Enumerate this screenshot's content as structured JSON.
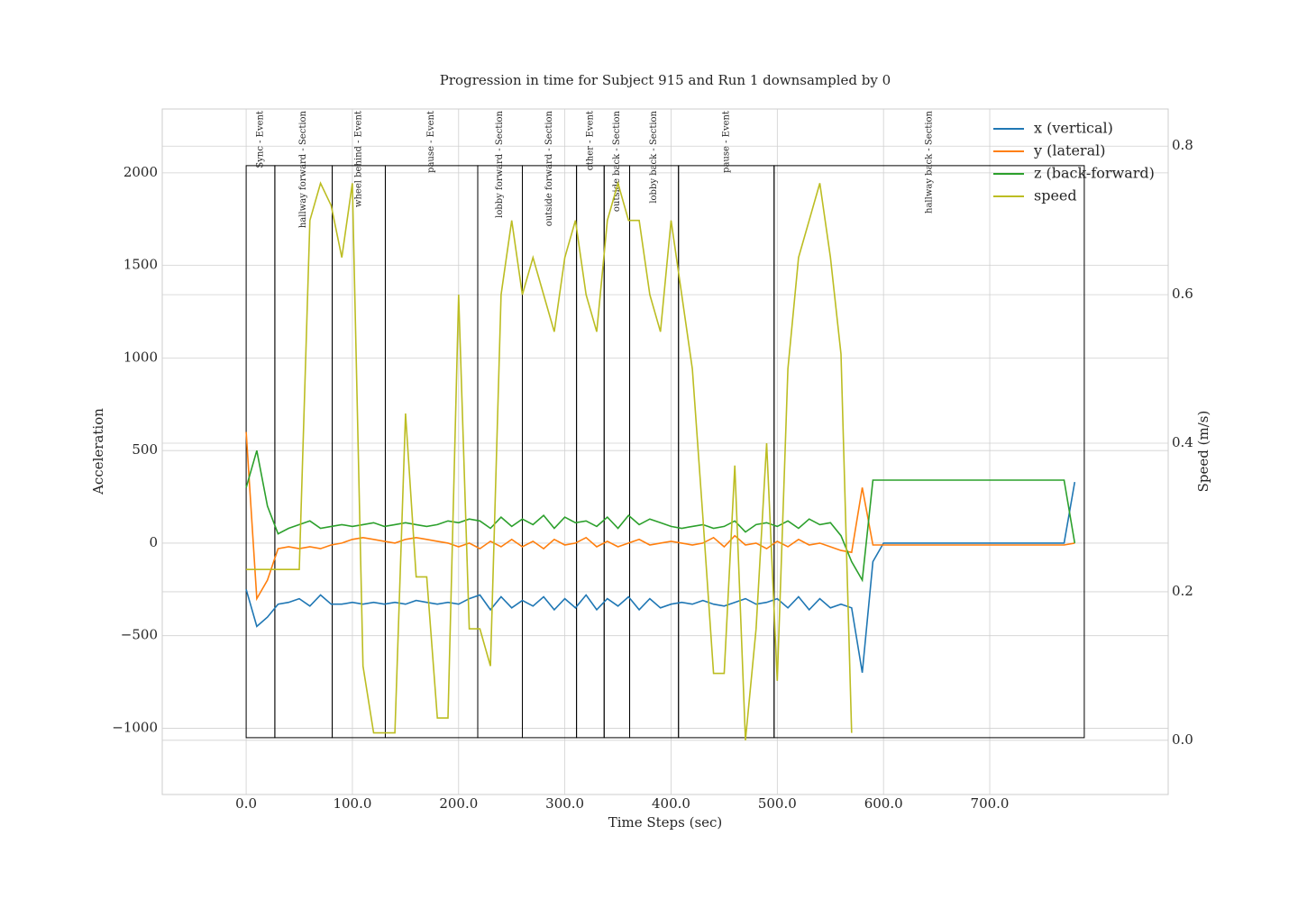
{
  "chart_data": {
    "type": "line",
    "title": "Progression in time for Subject 915 and Run 1 downsampled by 0",
    "x_label": "Time Steps (sec)",
    "y_label": "Acceleration",
    "y2_label": "Speed (m/s)",
    "xlim": [
      -79,
      868
    ],
    "ylim": [
      -1358,
      2345
    ],
    "y2lim": [
      -0.073,
      0.85
    ],
    "xticks": [
      {
        "value": 0,
        "label": "0.0"
      },
      {
        "value": 100,
        "label": "100.0"
      },
      {
        "value": 200,
        "label": "200.0"
      },
      {
        "value": 300,
        "label": "300.0"
      },
      {
        "value": 400,
        "label": "400.0"
      },
      {
        "value": 500,
        "label": "500.0"
      },
      {
        "value": 600,
        "label": "600.0"
      },
      {
        "value": 700,
        "label": "700.0"
      }
    ],
    "yticks": [
      {
        "value": -1000,
        "label": "−1000"
      },
      {
        "value": -500,
        "label": "−500"
      },
      0,
      500,
      1000,
      1500,
      2000
    ],
    "y2ticks": [
      {
        "value": 0,
        "label": "0.0"
      },
      0.2,
      0.4,
      0.6,
      0.8
    ],
    "grid": true,
    "legend": "upper right",
    "segment_range": [
      -1051,
      2039
    ],
    "segments": [
      {
        "label": "Sync - Event",
        "start": 0,
        "end": 27
      },
      {
        "label": "hallway forward - Section",
        "start": 27,
        "end": 81
      },
      {
        "label": "wheel behind - Event",
        "start": 81,
        "end": 131
      },
      {
        "label": "pause - Event",
        "start": 131,
        "end": 218
      },
      {
        "label": "lobby forward - Section",
        "start": 218,
        "end": 260
      },
      {
        "label": "outside forward - Section",
        "start": 260,
        "end": 311
      },
      {
        "label": "other - Event",
        "start": 311,
        "end": 337
      },
      {
        "label": "outside back - Section",
        "start": 337,
        "end": 361
      },
      {
        "label": "lobby back - Section",
        "start": 361,
        "end": 407
      },
      {
        "label": "pause - Event",
        "start": 407,
        "end": 497
      },
      {
        "label": "hallway back - Section",
        "start": 497,
        "end": 789
      }
    ],
    "x": [
      0,
      10,
      20,
      30,
      40,
      50,
      60,
      70,
      80,
      90,
      100,
      110,
      120,
      130,
      140,
      150,
      160,
      170,
      180,
      190,
      200,
      210,
      220,
      230,
      240,
      250,
      260,
      270,
      280,
      290,
      300,
      310,
      320,
      330,
      340,
      350,
      360,
      370,
      380,
      390,
      400,
      410,
      420,
      430,
      440,
      450,
      460,
      470,
      480,
      490,
      500,
      510,
      520,
      530,
      540,
      550,
      560,
      570,
      580,
      590,
      600,
      610,
      620,
      630,
      640,
      650,
      660,
      670,
      680,
      690,
      700,
      710,
      720,
      730,
      740,
      750,
      760,
      770,
      780
    ],
    "series": [
      {
        "name": "x (vertical)",
        "color": "#1f77b4",
        "axis": "y",
        "values": [
          -250,
          -450,
          -400,
          -330,
          -320,
          -300,
          -340,
          -280,
          -330,
          -330,
          -320,
          -330,
          -320,
          -330,
          -320,
          -330,
          -310,
          -320,
          -330,
          -320,
          -330,
          -300,
          -280,
          -360,
          -290,
          -350,
          -310,
          -340,
          -290,
          -360,
          -300,
          -350,
          -280,
          -360,
          -300,
          -340,
          -290,
          -360,
          -300,
          -350,
          -330,
          -320,
          -330,
          -310,
          -330,
          -340,
          -320,
          -300,
          -330,
          -320,
          -300,
          -350,
          -290,
          -360,
          -300,
          -350,
          -330,
          -350,
          -700,
          -100,
          0,
          0,
          0,
          0,
          0,
          0,
          0,
          0,
          0,
          0,
          0,
          0,
          0,
          0,
          0,
          0,
          0,
          0,
          330
        ]
      },
      {
        "name": "y (lateral)",
        "color": "#ff7f0e",
        "axis": "y",
        "values": [
          600,
          -300,
          -200,
          -30,
          -20,
          -30,
          -20,
          -30,
          -10,
          0,
          20,
          30,
          20,
          10,
          0,
          20,
          30,
          20,
          10,
          0,
          -20,
          0,
          -30,
          10,
          -20,
          20,
          -20,
          10,
          -30,
          20,
          -10,
          0,
          30,
          -20,
          10,
          -20,
          0,
          20,
          -10,
          0,
          10,
          0,
          -10,
          0,
          30,
          -20,
          40,
          -10,
          0,
          -30,
          10,
          -20,
          20,
          -10,
          0,
          -20,
          -40,
          -50,
          300,
          -10,
          -10,
          -10,
          -10,
          -10,
          -10,
          -10,
          -10,
          -10,
          -10,
          -10,
          -10,
          -10,
          -10,
          -10,
          -10,
          -10,
          -10,
          -10,
          0
        ]
      },
      {
        "name": "z (back-forward)",
        "color": "#2ca02c",
        "axis": "y",
        "values": [
          300,
          500,
          200,
          50,
          80,
          100,
          120,
          80,
          90,
          100,
          90,
          100,
          110,
          90,
          100,
          110,
          100,
          90,
          100,
          120,
          110,
          130,
          120,
          80,
          140,
          90,
          130,
          100,
          150,
          80,
          140,
          110,
          120,
          90,
          140,
          80,
          150,
          100,
          130,
          110,
          90,
          80,
          90,
          100,
          80,
          90,
          120,
          60,
          100,
          110,
          90,
          120,
          80,
          130,
          100,
          110,
          40,
          -100,
          -200,
          340,
          340,
          340,
          340,
          340,
          340,
          340,
          340,
          340,
          340,
          340,
          340,
          340,
          340,
          340,
          340,
          340,
          340,
          340,
          0
        ]
      },
      {
        "name": "speed",
        "color": "#bcbd22",
        "axis": "y2",
        "values": [
          0.23,
          0.23,
          0.23,
          0.23,
          0.23,
          0.23,
          0.7,
          0.75,
          0.72,
          0.65,
          0.75,
          0.1,
          0.01,
          0.01,
          0.01,
          0.44,
          0.22,
          0.22,
          0.03,
          0.03,
          0.6,
          0.15,
          0.15,
          0.1,
          0.6,
          0.7,
          0.6,
          0.65,
          0.6,
          0.55,
          0.65,
          0.7,
          0.6,
          0.55,
          0.7,
          0.75,
          0.7,
          0.7,
          0.6,
          0.55,
          0.7,
          0.6,
          0.5,
          0.3,
          0.09,
          0.09,
          0.37,
          0.0,
          0.15,
          0.4,
          0.08,
          0.5,
          0.65,
          0.7,
          0.75,
          0.65,
          0.52,
          0.01,
          null,
          null,
          null,
          null,
          null,
          null,
          null,
          null,
          null,
          null,
          null,
          null,
          null,
          null,
          null,
          null,
          null,
          null,
          null,
          null,
          null
        ]
      }
    ]
  }
}
